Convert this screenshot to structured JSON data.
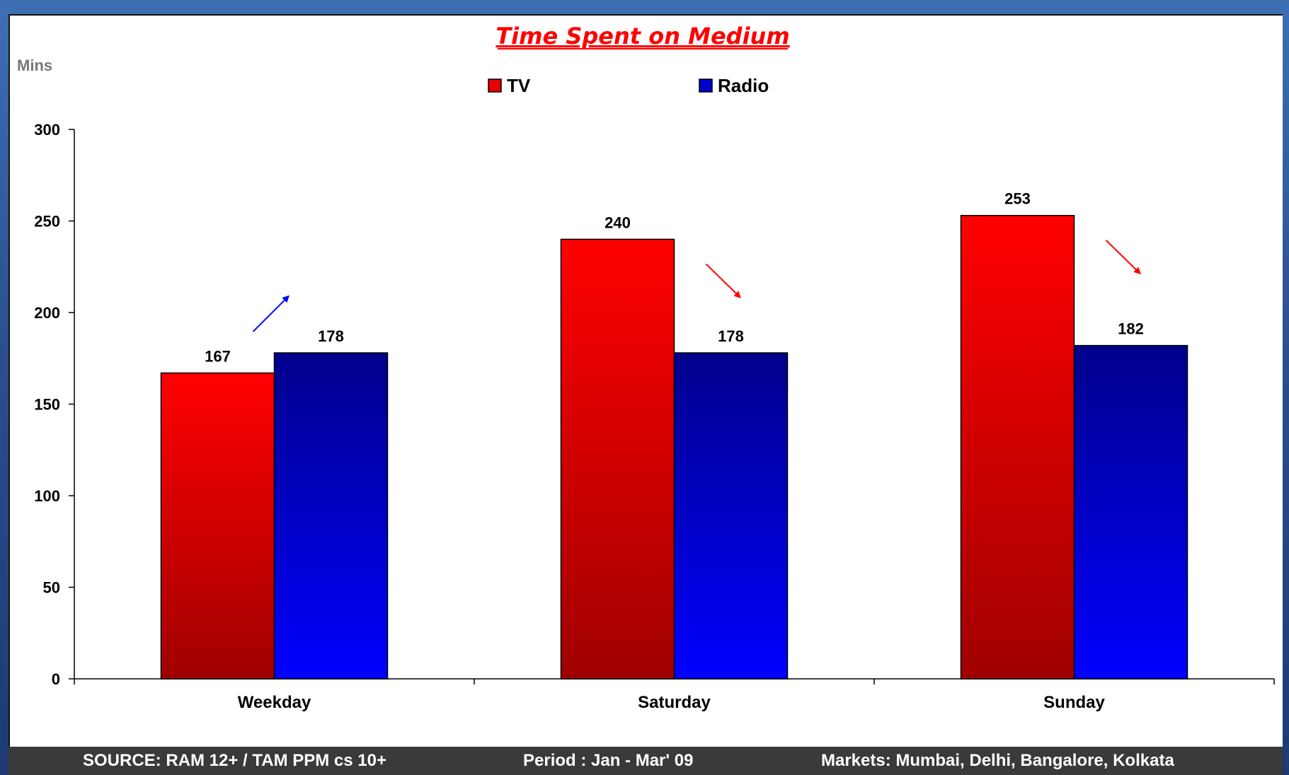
{
  "chart_data": {
    "type": "bar",
    "title": "Time Spent on Medium",
    "ylabel": "Mins",
    "xlabel": "",
    "categories": [
      "Weekday",
      "Saturday",
      "Sunday"
    ],
    "series": [
      {
        "name": "TV",
        "values": [
          167,
          240,
          253
        ],
        "color": "#e60000"
      },
      {
        "name": "Radio",
        "values": [
          178,
          178,
          182
        ],
        "color": "#0000cc"
      }
    ],
    "ylim": [
      0,
      300
    ],
    "yticks": [
      0,
      50,
      100,
      150,
      200,
      250,
      300
    ],
    "legend_position": "top",
    "grid": false,
    "annotations": [
      {
        "category": "Weekday",
        "direction": "up",
        "color": "#0000ff"
      },
      {
        "category": "Saturday",
        "direction": "down",
        "color": "#ff0000"
      },
      {
        "category": "Sunday",
        "direction": "down",
        "color": "#ff0000"
      }
    ]
  },
  "footer": {
    "source": "SOURCE: RAM 12+ / TAM PPM cs 10+",
    "period": "Period : Jan - Mar' 09",
    "markets": "Markets: Mumbai, Delhi, Bangalore, Kolkata"
  }
}
